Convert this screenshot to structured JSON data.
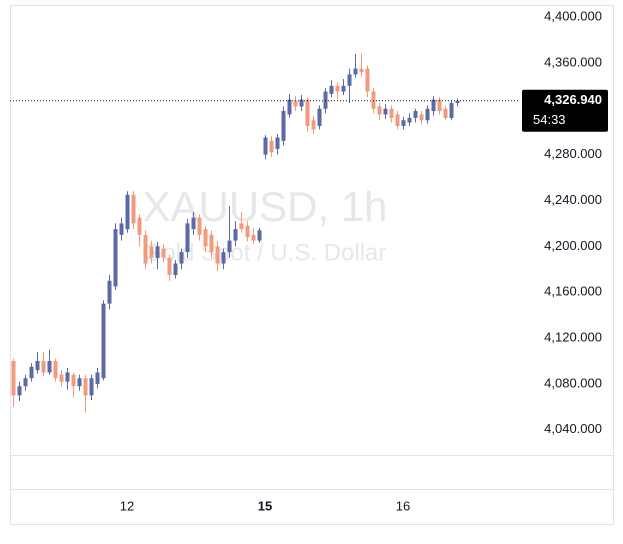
{
  "chart_data": {
    "type": "candlestick",
    "watermark": "XAUUSD, 1h",
    "watermark_subtitle": "Gold Spot / U.S. Dollar",
    "categories": [
      null,
      null,
      null,
      null,
      null,
      null,
      null,
      null,
      null,
      null,
      null,
      null,
      null,
      null,
      null,
      null,
      null,
      null,
      null,
      "12",
      null,
      null,
      null,
      null,
      null,
      null,
      null,
      null,
      null,
      null,
      null,
      null,
      null,
      null,
      null,
      null,
      null,
      null,
      null,
      null,
      null,
      null,
      "15",
      null,
      null,
      null,
      null,
      null,
      null,
      null,
      null,
      null,
      null,
      null,
      null,
      null,
      null,
      null,
      null,
      null,
      null,
      null,
      null,
      null,
      null,
      "16",
      null,
      null,
      null,
      null,
      null,
      null,
      null,
      null,
      null
    ],
    "open": [
      4100,
      4070,
      4078,
      4085,
      4092,
      4100,
      4090,
      4100,
      4088,
      4082,
      4088,
      4078,
      4085,
      4070,
      4080,
      4085,
      4150,
      4165,
      4210,
      4215,
      4245,
      4225,
      4210,
      4200,
      4190,
      4198,
      4190,
      4175,
      4185,
      4195,
      4215,
      4225,
      4215,
      4210,
      4200,
      4185,
      4195,
      4205,
      4220,
      4218,
      4210,
      4205,
      4280,
      4292,
      4285,
      4292,
      4315,
      4327,
      4322,
      4328,
      4310,
      4305,
      4320,
      4333,
      4340,
      4335,
      4340,
      4350,
      4355,
      4355,
      4335,
      4322,
      4315,
      4320,
      4315,
      4305,
      4308,
      4312,
      4315,
      4310,
      4318,
      4328,
      4320,
      4312,
      4325
    ],
    "high": [
      4102,
      4082,
      4088,
      4098,
      4108,
      4108,
      4110,
      4102,
      4092,
      4094,
      4090,
      4088,
      4088,
      4088,
      4094,
      4153,
      4175,
      4220,
      4225,
      4248,
      4248,
      4228,
      4214,
      4205,
      4204,
      4202,
      4193,
      4188,
      4198,
      4224,
      4230,
      4228,
      4218,
      4214,
      4205,
      4198,
      4235,
      4222,
      4230,
      4222,
      4216,
      4216,
      4297,
      4296,
      4298,
      4322,
      4333,
      4331,
      4332,
      4330,
      4314,
      4323,
      4338,
      4345,
      4343,
      4346,
      4355,
      4368,
      4368,
      4358,
      4338,
      4325,
      4324,
      4323,
      4318,
      4313,
      4316,
      4320,
      4318,
      4323,
      4331,
      4330,
      4323,
      4327,
      4329
    ],
    "low": [
      4060,
      4065,
      4074,
      4082,
      4089,
      4087,
      4088,
      4082,
      4078,
      4075,
      4068,
      4074,
      4055,
      4066,
      4076,
      4083,
      4145,
      4162,
      4205,
      4212,
      4215,
      4200,
      4180,
      4185,
      4180,
      4186,
      4170,
      4172,
      4180,
      4190,
      4210,
      4205,
      4195,
      4190,
      4178,
      4180,
      4190,
      4200,
      4212,
      4204,
      4202,
      4203,
      4276,
      4278,
      4280,
      4288,
      4312,
      4318,
      4318,
      4300,
      4298,
      4302,
      4316,
      4330,
      4328,
      4332,
      4325,
      4347,
      4348,
      4330,
      4316,
      4310,
      4311,
      4308,
      4302,
      4302,
      4305,
      4308,
      4306,
      4307,
      4314,
      4315,
      4310,
      4310,
      4322
    ],
    "close": [
      4070,
      4078,
      4085,
      4095,
      4100,
      4090,
      4100,
      4085,
      4082,
      4090,
      4078,
      4085,
      4070,
      4085,
      4090,
      4150,
      4170,
      4215,
      4220,
      4245,
      4220,
      4210,
      4185,
      4190,
      4200,
      4190,
      4175,
      4185,
      4195,
      4220,
      4225,
      4210,
      4200,
      4195,
      4185,
      4195,
      4205,
      4215,
      4215,
      4208,
      4205,
      4214,
      4295,
      4282,
      4295,
      4318,
      4328,
      4322,
      4328,
      4305,
      4302,
      4320,
      4335,
      4340,
      4335,
      4340,
      4350,
      4355,
      4352,
      4335,
      4320,
      4315,
      4320,
      4312,
      4305,
      4310,
      4312,
      4318,
      4310,
      4320,
      4328,
      4318,
      4312,
      4325,
      4326.94
    ],
    "up_color": "#5b6aa5",
    "down_color": "#f29a7c",
    "ylim": [
      4018,
      4410.5
    ],
    "yticks": [
      {
        "value": 4040,
        "label": "4,040.000"
      },
      {
        "value": 4080,
        "label": "4,080.000"
      },
      {
        "value": 4120,
        "label": "4,120.000"
      },
      {
        "value": 4160,
        "label": "4,160.000"
      },
      {
        "value": 4200,
        "label": "4,200.000"
      },
      {
        "value": 4240,
        "label": "4,240.000"
      },
      {
        "value": 4280,
        "label": "4,280.000"
      },
      {
        "value": 4320,
        "label": "4,320.000"
      },
      {
        "value": 4360,
        "label": "4,360.000"
      },
      {
        "value": 4400,
        "label": "4,400.000"
      }
    ],
    "last_price": {
      "value": 4326.94,
      "label": "4,326.940"
    },
    "countdown": "54:33"
  }
}
